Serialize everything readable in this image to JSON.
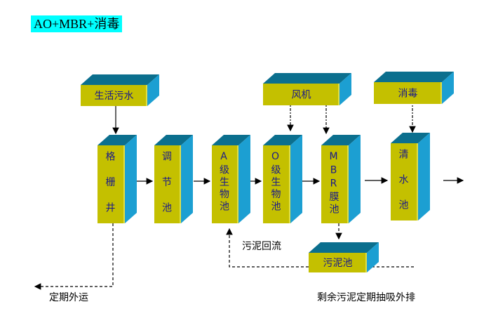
{
  "title": "AO+MBR+消毒",
  "colors": {
    "front": "#c4c000",
    "top": "#0b6f8e",
    "side": "#1c9fd2",
    "title_bg": "#00ffff",
    "text": "#1a1a8a"
  },
  "boxes": {
    "sewage": "生活污水",
    "screen_well": "格栅井",
    "equalization": "调节池",
    "a_tank": "A级生物池",
    "o_tank": "O级生物池",
    "mbr_tank": "MBR膜池",
    "clear_water": "清水池",
    "blower": "风机",
    "disinfection": "消毒",
    "sludge_tank": "污泥池"
  },
  "labels": {
    "sludge_return": "污泥回流",
    "periodic_removal": "定期外运",
    "excess_sludge": "剩余污泥定期抽吸外排"
  }
}
